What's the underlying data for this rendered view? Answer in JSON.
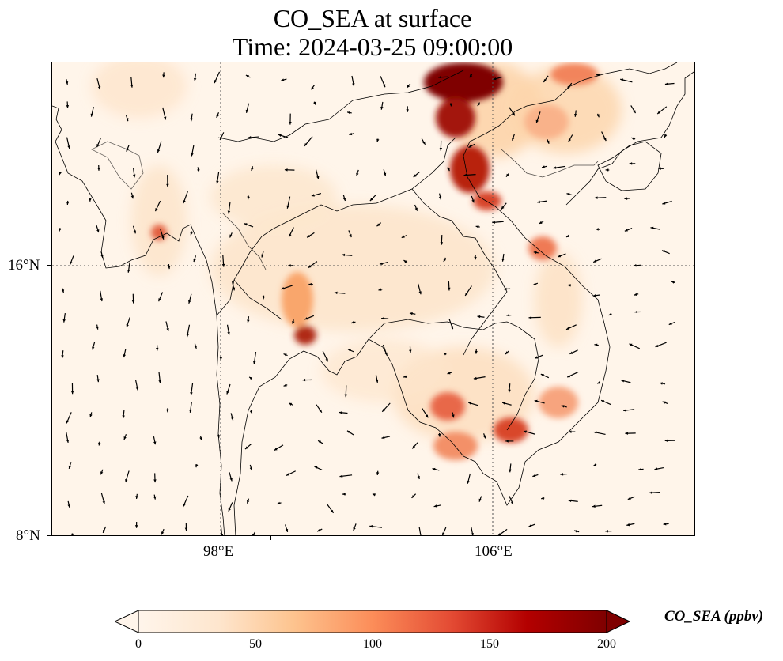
{
  "title": {
    "line1": "CO_SEA at surface",
    "line2": "Time: 2024-03-25 09:00:00"
  },
  "axes": {
    "lon_labels": [
      "98°E",
      "106°E"
    ],
    "lat_labels": [
      "16°N",
      "8°N"
    ]
  },
  "colorbar": {
    "label": "CO_SEA (ppbv)",
    "ticks": [
      "0",
      "50",
      "100",
      "150",
      "200"
    ],
    "colormap": [
      "#fff5eb",
      "#fdd4aa",
      "#fdab67",
      "#f16913",
      "#d94801",
      "#a63603",
      "#7f0000"
    ],
    "range": [
      0,
      200
    ],
    "extend": "both"
  },
  "colors": {
    "background": "#fff5ea",
    "coastline": "#000000",
    "gridline": "#555555"
  }
}
